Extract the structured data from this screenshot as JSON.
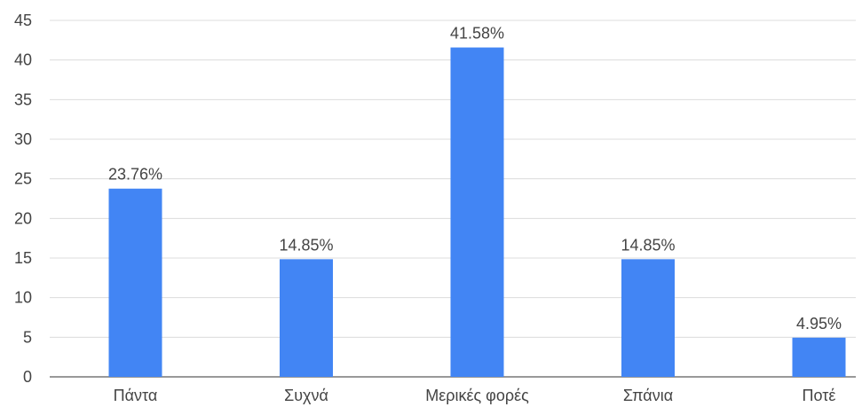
{
  "chart_data": {
    "type": "bar",
    "categories": [
      "Πάντα",
      "Συχνά",
      "Μερικές φορές",
      "Σπάνια",
      "Ποτέ"
    ],
    "values": [
      23.76,
      14.85,
      41.58,
      14.85,
      4.95
    ],
    "data_labels": [
      "23.76%",
      "14.85%",
      "41.58%",
      "14.85%",
      "4.95%"
    ],
    "yticks": [
      0,
      5,
      10,
      15,
      20,
      25,
      30,
      35,
      40,
      45
    ],
    "ylim": [
      0,
      45
    ],
    "grid": true,
    "legend": "none",
    "bar_color": "#4285F4"
  }
}
